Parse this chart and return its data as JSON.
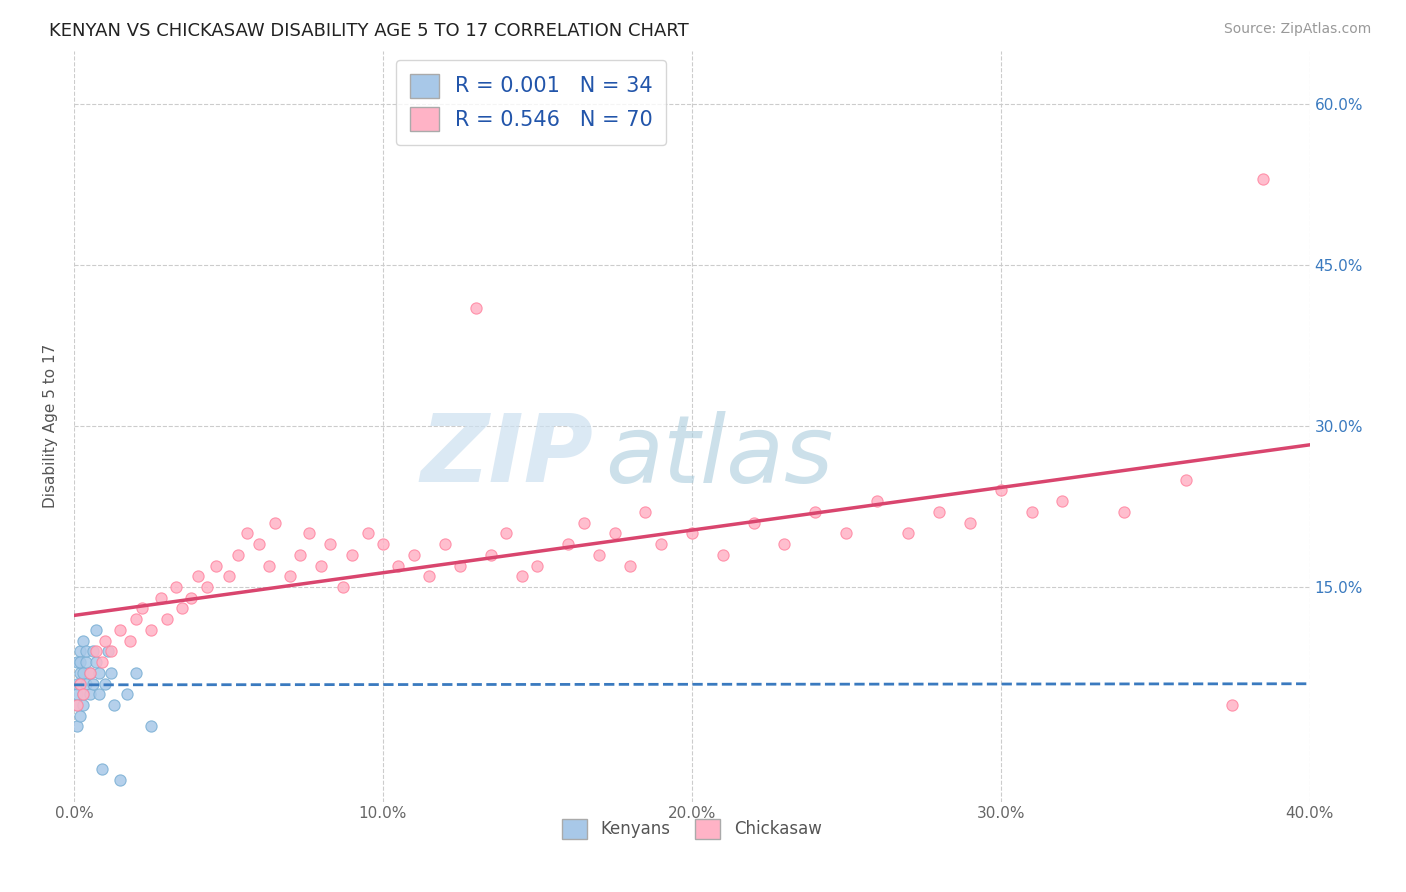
{
  "title": "KENYAN VS CHICKASAW DISABILITY AGE 5 TO 17 CORRELATION CHART",
  "source": "Source: ZipAtlas.com",
  "ylabel": "Disability Age 5 to 17",
  "xlim": [
    0.0,
    0.4
  ],
  "ylim": [
    -0.05,
    0.65
  ],
  "xtick_labels": [
    "0.0%",
    "10.0%",
    "20.0%",
    "30.0%",
    "40.0%"
  ],
  "xtick_vals": [
    0.0,
    0.1,
    0.2,
    0.3,
    0.4
  ],
  "ytick_right_labels": [
    "15.0%",
    "30.0%",
    "45.0%",
    "60.0%"
  ],
  "ytick_right_vals": [
    0.15,
    0.3,
    0.45,
    0.6
  ],
  "kenyan_color": "#a8c8e8",
  "kenyan_edge_color": "#7aafd4",
  "chickasaw_color": "#ffb3c6",
  "chickasaw_edge_color": "#ff85a0",
  "kenyan_R": 0.001,
  "kenyan_N": 34,
  "chickasaw_R": 0.546,
  "chickasaw_N": 70,
  "kenyan_line_color": "#3a7abf",
  "chickasaw_line_color": "#d9456e",
  "watermark_zip": "ZIP",
  "watermark_atlas": "atlas",
  "watermark_color_zip": "#ccdff0",
  "watermark_color_atlas": "#b8d4e8",
  "legend_text_color": "#2255aa",
  "background_color": "#ffffff",
  "grid_color": "#cccccc",
  "kenyan_x": [
    0.001,
    0.001,
    0.001,
    0.001,
    0.001,
    0.002,
    0.002,
    0.002,
    0.002,
    0.002,
    0.003,
    0.003,
    0.003,
    0.003,
    0.004,
    0.004,
    0.004,
    0.005,
    0.005,
    0.006,
    0.006,
    0.007,
    0.007,
    0.008,
    0.008,
    0.009,
    0.01,
    0.011,
    0.012,
    0.013,
    0.015,
    0.017,
    0.02,
    0.025
  ],
  "kenyan_y": [
    0.04,
    0.06,
    0.08,
    0.02,
    0.05,
    0.07,
    0.09,
    0.03,
    0.06,
    0.08,
    0.05,
    0.07,
    0.1,
    0.04,
    0.08,
    0.06,
    0.09,
    0.07,
    0.05,
    0.09,
    0.06,
    0.08,
    0.11,
    0.05,
    0.07,
    -0.02,
    0.06,
    0.09,
    0.07,
    0.04,
    -0.03,
    0.05,
    0.07,
    0.02
  ],
  "chickasaw_x": [
    0.001,
    0.002,
    0.003,
    0.005,
    0.007,
    0.009,
    0.01,
    0.012,
    0.015,
    0.018,
    0.02,
    0.022,
    0.025,
    0.028,
    0.03,
    0.033,
    0.035,
    0.038,
    0.04,
    0.043,
    0.046,
    0.05,
    0.053,
    0.056,
    0.06,
    0.063,
    0.065,
    0.07,
    0.073,
    0.076,
    0.08,
    0.083,
    0.087,
    0.09,
    0.095,
    0.1,
    0.105,
    0.11,
    0.115,
    0.12,
    0.125,
    0.13,
    0.135,
    0.14,
    0.145,
    0.15,
    0.16,
    0.165,
    0.17,
    0.175,
    0.18,
    0.185,
    0.19,
    0.2,
    0.21,
    0.22,
    0.23,
    0.24,
    0.25,
    0.26,
    0.27,
    0.28,
    0.29,
    0.3,
    0.31,
    0.32,
    0.34,
    0.36,
    0.375,
    0.385
  ],
  "chickasaw_y": [
    0.04,
    0.06,
    0.05,
    0.07,
    0.09,
    0.08,
    0.1,
    0.09,
    0.11,
    0.1,
    0.12,
    0.13,
    0.11,
    0.14,
    0.12,
    0.15,
    0.13,
    0.14,
    0.16,
    0.15,
    0.17,
    0.16,
    0.18,
    0.2,
    0.19,
    0.17,
    0.21,
    0.16,
    0.18,
    0.2,
    0.17,
    0.19,
    0.15,
    0.18,
    0.2,
    0.19,
    0.17,
    0.18,
    0.16,
    0.19,
    0.17,
    0.41,
    0.18,
    0.2,
    0.16,
    0.17,
    0.19,
    0.21,
    0.18,
    0.2,
    0.17,
    0.22,
    0.19,
    0.2,
    0.18,
    0.21,
    0.19,
    0.22,
    0.2,
    0.23,
    0.2,
    0.22,
    0.21,
    0.24,
    0.22,
    0.23,
    0.22,
    0.25,
    0.04,
    0.53
  ]
}
